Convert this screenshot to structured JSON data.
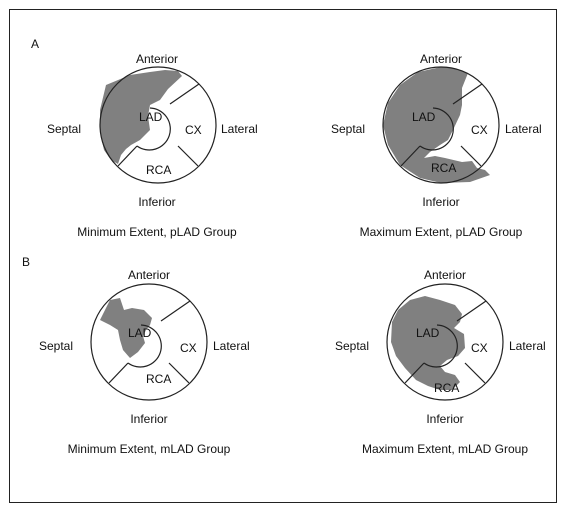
{
  "panels": [
    {
      "letter": "A",
      "plots": [
        {
          "anterior": "Anterior",
          "septal": "Septal",
          "lateral": "Lateral",
          "inferior": "Inferior",
          "lad": "LAD",
          "cx": "CX",
          "rca": "RCA",
          "caption": "Minimum Extent, pLAD Group"
        },
        {
          "anterior": "Anterior",
          "septal": "Septal",
          "lateral": "Lateral",
          "inferior": "Inferior",
          "lad": "LAD",
          "cx": "CX",
          "rca": "RCA",
          "caption": "Maximum Extent, pLAD Group"
        }
      ]
    },
    {
      "letter": "B",
      "plots": [
        {
          "anterior": "Anterior",
          "septal": "Septal",
          "lateral": "Lateral",
          "inferior": "Inferior",
          "lad": "LAD",
          "cx": "CX",
          "rca": "RCA",
          "caption": "Minimum Extent, mLAD Group"
        },
        {
          "anterior": "Anterior",
          "septal": "Septal",
          "lateral": "Lateral",
          "inferior": "Inferior",
          "lad": "LAD",
          "cx": "CX",
          "rca": "RCA",
          "caption": "Maximum Extent, mLAD Group"
        }
      ]
    }
  ],
  "colors": {
    "defect_fill": "#808080",
    "outline": "#222222",
    "background": "#ffffff"
  }
}
